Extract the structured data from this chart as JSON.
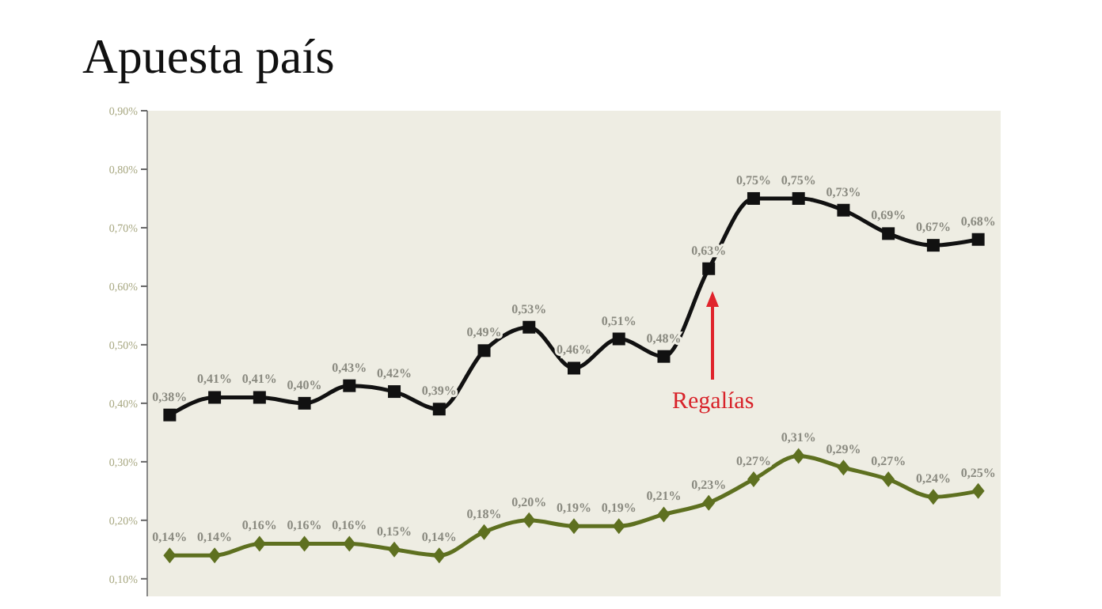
{
  "chart_data": {
    "type": "line",
    "title": "Apuesta país",
    "categories": [
      null,
      null,
      null,
      null,
      null,
      null,
      null,
      null,
      null,
      null,
      null,
      null,
      null,
      null,
      null,
      null,
      null,
      null,
      null
    ],
    "series": [
      {
        "color": "#111111",
        "marker": "square",
        "values": [
          0.38,
          0.41,
          0.41,
          0.4,
          0.43,
          0.42,
          0.39,
          0.49,
          0.53,
          0.46,
          0.51,
          0.48,
          0.63,
          0.75,
          0.75,
          0.73,
          0.69,
          0.67,
          0.68
        ],
        "value_labels": [
          "0,38%",
          "0,41%",
          "0,41%",
          "0,40%",
          "0,43%",
          "0,42%",
          "0,39%",
          "0,49%",
          "0,53%",
          "0,46%",
          "0,51%",
          "0,48%",
          "0,63%",
          "0,75%",
          "0,75%",
          "0,73%",
          "0,69%",
          "0,67%",
          "0,68%"
        ]
      },
      {
        "color": "#5e7020",
        "marker": "diamond",
        "values": [
          0.14,
          0.14,
          0.16,
          0.16,
          0.16,
          0.15,
          0.14,
          0.18,
          0.2,
          0.19,
          0.19,
          0.21,
          0.23,
          0.27,
          0.31,
          0.29,
          0.27,
          0.24,
          0.25
        ],
        "value_labels": [
          "0,14%",
          "0,14%",
          "0,16%",
          "0,16%",
          "0,16%",
          "0,15%",
          "0,14%",
          "0,18%",
          "0,20%",
          "0,19%",
          "0,19%",
          "0,21%",
          "0,23%",
          "0,27%",
          "0,31%",
          "0,29%",
          "0,27%",
          "0,24%",
          "0,25%"
        ]
      }
    ],
    "ylim": [
      0.07,
      0.9
    ],
    "yticks": [
      {
        "value": 0.1,
        "label": "0,10%"
      },
      {
        "value": 0.2,
        "label": "0,20%"
      },
      {
        "value": 0.3,
        "label": "0,30%"
      },
      {
        "value": 0.4,
        "label": "0,40%"
      },
      {
        "value": 0.5,
        "label": "0,50%"
      },
      {
        "value": 0.6,
        "label": "0,60%"
      },
      {
        "value": 0.7,
        "label": "0,70%"
      },
      {
        "value": 0.8,
        "label": "0,80%"
      },
      {
        "value": 0.9,
        "label": "0,90%"
      }
    ],
    "tick_labels": "y",
    "line_style": "solid",
    "annotations": [
      "Regalías"
    ]
  }
}
